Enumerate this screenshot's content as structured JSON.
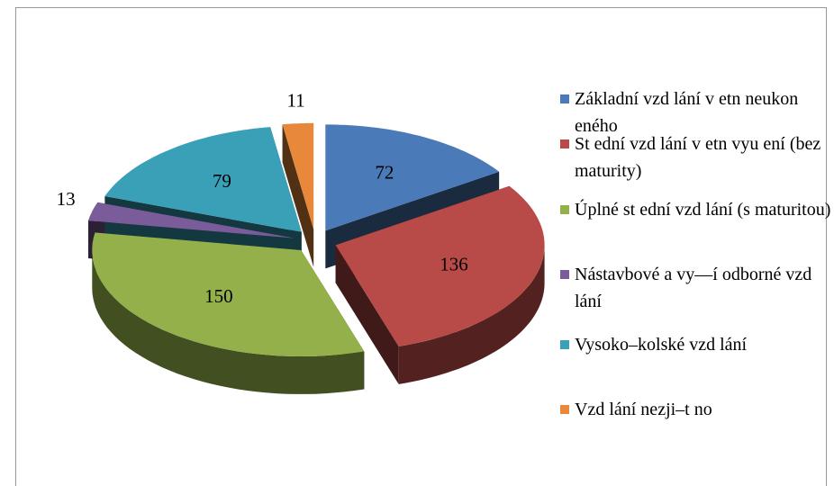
{
  "chart_data": {
    "type": "pie",
    "categories": [
      "Základní vzd lání v etn neukon eného",
      "St ední vzd lání v etn vyu ení (bez maturity)",
      "Úplné st ední vzd lání (s maturitou)",
      "Nástavbové a vy—í odborné vzd lání",
      "Vysoko–kolské vzd lání",
      "Vzd lání nezji–t no"
    ],
    "values": [
      72,
      136,
      150,
      13,
      79,
      11
    ],
    "colors": [
      "#4a7ab8",
      "#b84a47",
      "#93b04a",
      "#7a5c9a",
      "#3aa0b8",
      "#e8883a"
    ]
  }
}
